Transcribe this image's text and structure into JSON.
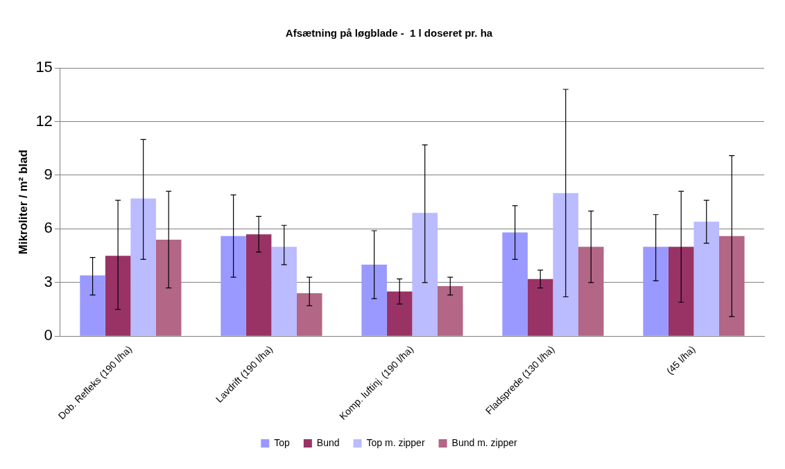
{
  "chart_data": {
    "type": "bar",
    "title": "Afsætning på løgblade -  1 l doseret pr. ha",
    "ylabel": "Mikroliter / m² blad",
    "categories": [
      "Dob. Refleks (190 l/ha)",
      "Lavdrift (190 l/ha)",
      "Komp. luftinj. (190 l/ha)",
      "Fladsprede (130 l/ha)",
      "(45 l/ha)"
    ],
    "series": [
      {
        "name": "Top",
        "color": "#9999ff",
        "values": [
          3.4,
          5.6,
          4.0,
          5.8,
          5.0
        ],
        "errors": [
          [
            2.3,
            4.4
          ],
          [
            3.3,
            7.9
          ],
          [
            2.1,
            5.9
          ],
          [
            4.3,
            7.3
          ],
          [
            3.1,
            6.8
          ]
        ]
      },
      {
        "name": "Bund",
        "color": "#993366",
        "values": [
          4.5,
          5.7,
          2.5,
          3.2,
          5.0
        ],
        "errors": [
          [
            1.5,
            7.6
          ],
          [
            4.7,
            6.7
          ],
          [
            1.8,
            3.2
          ],
          [
            2.7,
            3.7
          ],
          [
            1.9,
            8.1
          ]
        ]
      },
      {
        "name": "Top m. zipper",
        "color": "#bbbbff",
        "values": [
          7.7,
          5.0,
          6.9,
          8.0,
          6.4
        ],
        "errors": [
          [
            4.3,
            11.0
          ],
          [
            4.0,
            6.2
          ],
          [
            3.0,
            10.7
          ],
          [
            2.2,
            13.8
          ],
          [
            5.2,
            7.6
          ]
        ]
      },
      {
        "name": "Bund m. zipper",
        "color": "#b36685",
        "values": [
          5.4,
          2.4,
          2.8,
          5.0,
          5.6
        ],
        "errors": [
          [
            2.7,
            8.1
          ],
          [
            1.7,
            3.3
          ],
          [
            2.3,
            3.3
          ],
          [
            3.0,
            7.0
          ],
          [
            1.1,
            10.1
          ]
        ]
      }
    ],
    "ylim": [
      0,
      15
    ],
    "yticks": [
      0,
      3,
      6,
      9,
      12,
      15
    ],
    "grid": "y",
    "legend": "bottom"
  }
}
